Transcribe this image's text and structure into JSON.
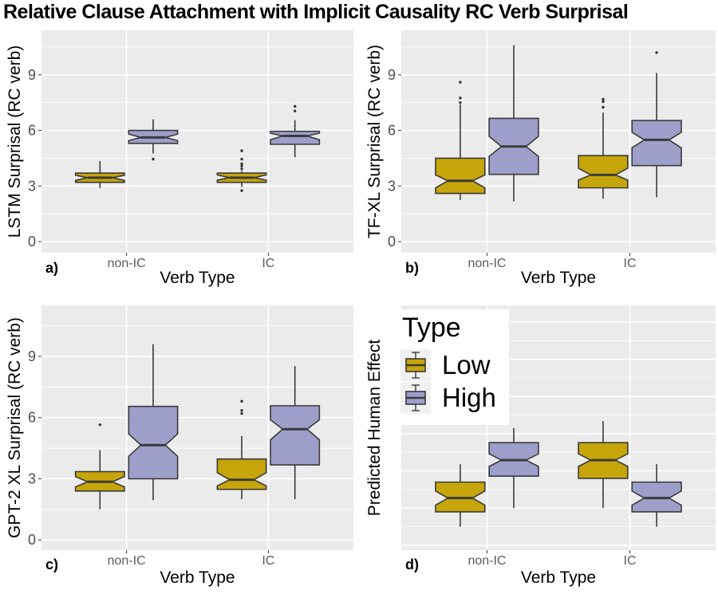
{
  "title": "Relative Clause Attachment with Implicit Causality RC Verb Surprisal",
  "x_axis": {
    "title": "Verb Type",
    "categories": [
      "non-IC",
      "IC"
    ]
  },
  "legend": {
    "title": "Type",
    "position": "top-left of panel d",
    "entries": [
      {
        "label": "Low",
        "series": "Low"
      },
      {
        "label": "High",
        "series": "High"
      }
    ]
  },
  "colors": {
    "Low": "#C6A50A",
    "High": "#9E9ECB",
    "panel_bg": "#EBEBEB",
    "grid": "#FFFFFF",
    "box_border": "#3A3A3A",
    "median": "#3A3A3A",
    "outlier": "#333333",
    "axis_tick_text": "#4D4D4D",
    "category_text": "#5B5B5B",
    "tick_mark": "#333333"
  },
  "chart_data": [
    {
      "type": "boxplot",
      "panel": "a",
      "tag": "a)",
      "ylabel": "LSTM Surprisal (RC verb)",
      "xlabel": "Verb Type",
      "ylim": [
        -0.6,
        11.4
      ],
      "yticks": [
        0,
        3,
        6,
        9
      ],
      "yticks_minor": [
        1.5,
        4.5,
        7.5,
        10.5
      ],
      "show_y_tick_labels": true,
      "grid": true,
      "boxes": [
        {
          "category": "non-IC",
          "series": "Low",
          "whisker_lo": 2.9,
          "q1": 3.2,
          "median": 3.45,
          "q3": 3.7,
          "whisker_hi": 4.35,
          "notch_lo": 3.3,
          "notch_hi": 3.58,
          "outliers": []
        },
        {
          "category": "non-IC",
          "series": "High",
          "whisker_lo": 4.75,
          "q1": 5.3,
          "median": 5.62,
          "q3": 6.0,
          "whisker_hi": 6.6,
          "notch_lo": 5.45,
          "notch_hi": 5.8,
          "outliers": [
            4.45
          ]
        },
        {
          "category": "IC",
          "series": "Low",
          "whisker_lo": 2.95,
          "q1": 3.2,
          "median": 3.45,
          "q3": 3.7,
          "whisker_hi": 3.8,
          "notch_lo": 3.32,
          "notch_hi": 3.6,
          "outliers": [
            2.75,
            3.92,
            4.08,
            4.2,
            4.45,
            4.9
          ]
        },
        {
          "category": "IC",
          "series": "High",
          "whisker_lo": 4.55,
          "q1": 5.25,
          "median": 5.7,
          "q3": 5.95,
          "whisker_hi": 6.55,
          "notch_lo": 5.5,
          "notch_hi": 5.85,
          "outliers": [
            7.05,
            7.3
          ]
        }
      ]
    },
    {
      "type": "boxplot",
      "panel": "b",
      "tag": "b)",
      "ylabel": "TF-XL Surprisal (RC verb)",
      "xlabel": "Verb Type",
      "ylim": [
        -0.6,
        11.4
      ],
      "yticks": [
        0,
        3,
        6,
        9
      ],
      "yticks_minor": [
        1.5,
        4.5,
        7.5,
        10.5
      ],
      "show_y_tick_labels": true,
      "grid": true,
      "boxes": [
        {
          "category": "non-IC",
          "series": "Low",
          "whisker_lo": 2.25,
          "q1": 2.6,
          "median": 3.28,
          "q3": 4.5,
          "whisker_hi": 7.4,
          "notch_lo": 2.9,
          "notch_hi": 3.6,
          "outliers": [
            7.5,
            7.75,
            8.6
          ]
        },
        {
          "category": "non-IC",
          "series": "High",
          "whisker_lo": 2.17,
          "q1": 3.63,
          "median": 5.13,
          "q3": 6.65,
          "whisker_hi": 10.6,
          "notch_lo": 4.6,
          "notch_hi": 5.68,
          "outliers": []
        },
        {
          "category": "IC",
          "series": "Low",
          "whisker_lo": 2.32,
          "q1": 2.9,
          "median": 3.6,
          "q3": 4.64,
          "whisker_hi": 6.96,
          "notch_lo": 3.32,
          "notch_hi": 3.96,
          "outliers": [
            7.25,
            7.55,
            7.68
          ]
        },
        {
          "category": "IC",
          "series": "High",
          "whisker_lo": 2.39,
          "q1": 4.1,
          "median": 5.49,
          "q3": 6.53,
          "whisker_hi": 9.1,
          "notch_lo": 5.06,
          "notch_hi": 5.9,
          "outliers": [
            10.2
          ]
        }
      ]
    },
    {
      "type": "boxplot",
      "panel": "c",
      "tag": "c)",
      "ylabel": "GPT-2 XL Surprisal (RC verb)",
      "xlabel": "Verb Type",
      "ylim": [
        -0.5,
        11.5
      ],
      "yticks": [
        0,
        3,
        6,
        9
      ],
      "yticks_minor": [
        1.5,
        4.5,
        7.5,
        10.5
      ],
      "show_y_tick_labels": true,
      "grid": true,
      "boxes": [
        {
          "category": "non-IC",
          "series": "Low",
          "whisker_lo": 1.5,
          "q1": 2.4,
          "median": 2.85,
          "q3": 3.35,
          "whisker_hi": 4.4,
          "notch_lo": 2.6,
          "notch_hi": 3.1,
          "outliers": [
            5.65
          ]
        },
        {
          "category": "non-IC",
          "series": "High",
          "whisker_lo": 1.95,
          "q1": 3.0,
          "median": 4.65,
          "q3": 6.55,
          "whisker_hi": 9.6,
          "notch_lo": 4.1,
          "notch_hi": 5.2,
          "outliers": []
        },
        {
          "category": "IC",
          "series": "Low",
          "whisker_lo": 2.0,
          "q1": 2.48,
          "median": 2.95,
          "q3": 3.97,
          "whisker_hi": 5.1,
          "notch_lo": 2.65,
          "notch_hi": 3.3,
          "outliers": [
            6.2,
            6.35,
            6.8
          ]
        },
        {
          "category": "IC",
          "series": "High",
          "whisker_lo": 2.0,
          "q1": 3.68,
          "median": 5.43,
          "q3": 6.58,
          "whisker_hi": 8.52,
          "notch_lo": 4.91,
          "notch_hi": 5.89,
          "outliers": []
        }
      ]
    },
    {
      "type": "boxplot",
      "panel": "d",
      "tag": "d)",
      "ylabel": "Predicted Human Effect",
      "xlabel": "Verb Type",
      "ylim": [
        -0.13,
        6.45
      ],
      "yticks": [
        0,
        1,
        2,
        3,
        4,
        5,
        6
      ],
      "yticks_minor": [
        0.5,
        1.5,
        2.5,
        3.5,
        4.5,
        5.5
      ],
      "show_y_tick_labels": false,
      "grid": true,
      "boxes": [
        {
          "category": "non-IC",
          "series": "Low",
          "whisker_lo": 0.5,
          "q1": 0.9,
          "median": 1.27,
          "q3": 1.7,
          "whisker_hi": 2.18,
          "notch_lo": 1.08,
          "notch_hi": 1.46,
          "outliers": []
        },
        {
          "category": "non-IC",
          "series": "High",
          "whisker_lo": 1.0,
          "q1": 1.86,
          "median": 2.29,
          "q3": 2.76,
          "whisker_hi": 3.15,
          "notch_lo": 2.12,
          "notch_hi": 2.46,
          "outliers": []
        },
        {
          "category": "IC",
          "series": "Low",
          "whisker_lo": 1.0,
          "q1": 1.8,
          "median": 2.29,
          "q3": 2.76,
          "whisker_hi": 3.34,
          "notch_lo": 2.12,
          "notch_hi": 2.46,
          "outliers": []
        },
        {
          "category": "IC",
          "series": "High",
          "whisker_lo": 0.5,
          "q1": 0.9,
          "median": 1.27,
          "q3": 1.7,
          "whisker_hi": 2.18,
          "notch_lo": 1.08,
          "notch_hi": 1.46,
          "outliers": []
        }
      ]
    }
  ]
}
